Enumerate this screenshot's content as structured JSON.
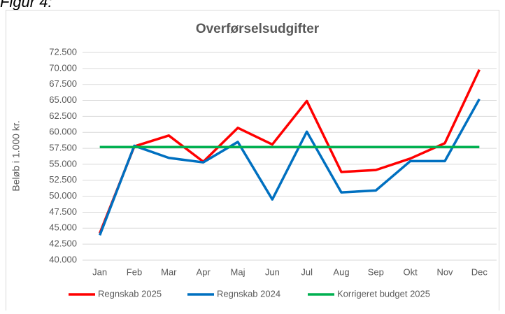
{
  "caption": "Figur 4:",
  "chart_data": {
    "type": "line",
    "title": "Overførselsudgifter",
    "y_label": "Beløb i 1.000 kr.",
    "categories": [
      "Jan",
      "Feb",
      "Mar",
      "Apr",
      "Maj",
      "Jun",
      "Jul",
      "Aug",
      "Sep",
      "Okt",
      "Nov",
      "Dec"
    ],
    "series": [
      {
        "name": "Regnskab 2025",
        "color": "#ff0000",
        "values": [
          44200,
          57800,
          59500,
          55400,
          60700,
          58100,
          64900,
          53800,
          54100,
          55900,
          58300,
          69800
        ]
      },
      {
        "name": "Regnskab 2024",
        "color": "#0070c0",
        "values": [
          43900,
          57900,
          56000,
          55300,
          58500,
          49500,
          60100,
          50600,
          50900,
          55500,
          55500,
          65200
        ]
      },
      {
        "name": "Korrigeret budget 2025",
        "color": "#00b050",
        "values": [
          57700,
          57700,
          57700,
          57700,
          57700,
          57700,
          57700,
          57700,
          57700,
          57700,
          57700,
          57700
        ]
      }
    ],
    "ylim": [
      40000,
      72500
    ],
    "yticks": [
      {
        "value": 40000,
        "label": "40.000"
      },
      {
        "value": 42500,
        "label": "42.500"
      },
      {
        "value": 45000,
        "label": "45.000"
      },
      {
        "value": 47500,
        "label": "47.500"
      },
      {
        "value": 50000,
        "label": "50.000"
      },
      {
        "value": 52500,
        "label": "52.500"
      },
      {
        "value": 55000,
        "label": "55.000"
      },
      {
        "value": 57500,
        "label": "57.500"
      },
      {
        "value": 60000,
        "label": "60.000"
      },
      {
        "value": 62500,
        "label": "62.500"
      },
      {
        "value": 65000,
        "label": "65.000"
      },
      {
        "value": 67500,
        "label": "67.500"
      },
      {
        "value": 70000,
        "label": "70.000"
      },
      {
        "value": 72500,
        "label": "72.500"
      }
    ],
    "grid": true,
    "legend": "bottom"
  }
}
